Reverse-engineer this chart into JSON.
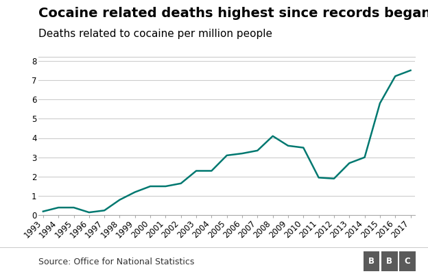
{
  "title": "Cocaine related deaths highest since records began",
  "subtitle": "Deaths related to cocaine per million people",
  "source": "Source: Office for National Statistics",
  "years": [
    1993,
    1994,
    1995,
    1996,
    1997,
    1998,
    1999,
    2000,
    2001,
    2002,
    2003,
    2004,
    2005,
    2006,
    2007,
    2008,
    2009,
    2010,
    2011,
    2012,
    2013,
    2014,
    2015,
    2016,
    2017
  ],
  "values": [
    0.2,
    0.4,
    0.4,
    0.15,
    0.25,
    0.8,
    1.2,
    1.5,
    1.5,
    1.65,
    2.3,
    2.3,
    3.1,
    3.2,
    3.35,
    4.1,
    3.6,
    3.5,
    1.95,
    1.9,
    2.7,
    3.0,
    5.8,
    7.2,
    7.5
  ],
  "line_color": "#007870",
  "background_color": "#ffffff",
  "grid_color": "#cccccc",
  "ylim": [
    0,
    8
  ],
  "yticks": [
    0,
    1,
    2,
    3,
    4,
    5,
    6,
    7,
    8
  ],
  "title_fontsize": 14,
  "subtitle_fontsize": 11,
  "source_fontsize": 9,
  "tick_fontsize": 8.5,
  "line_width": 1.8,
  "bbc_box_color": "#5a5a5a",
  "bbc_text_color": "#ffffff"
}
